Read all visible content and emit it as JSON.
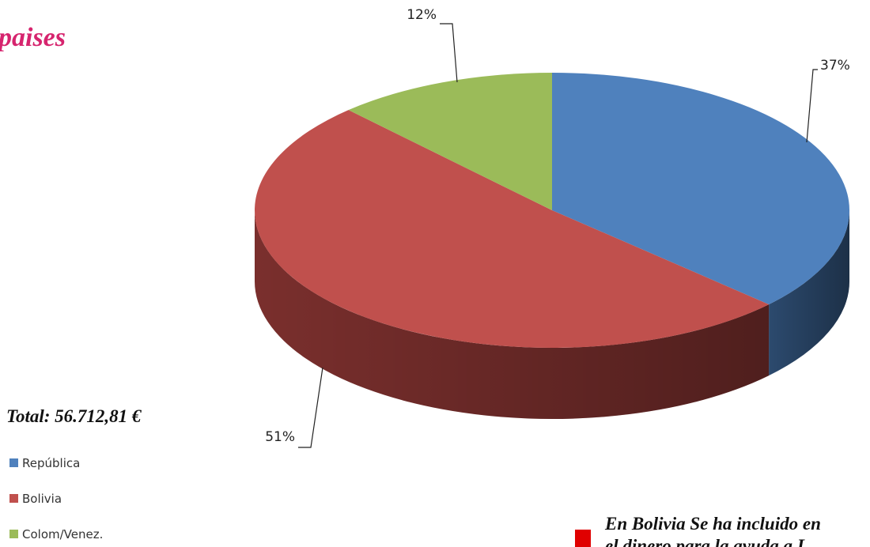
{
  "chart_data": {
    "type": "pie",
    "title": "paises",
    "categories": [
      "República",
      "Bolivia",
      "Colom/Venez."
    ],
    "values": [
      37,
      51,
      12
    ],
    "value_labels": [
      "37%",
      "51%",
      "12%"
    ],
    "colors": [
      "#4f81bd",
      "#c0504d",
      "#9bbb59"
    ],
    "side_colors": [
      "#2c4a6e",
      "#7a2f2d",
      "#5f7634"
    ],
    "annotations": [
      "Total: 56.712,81 €",
      "En Bolivia Se ha incluido en",
      "el dinero para la ayuda a L"
    ]
  }
}
